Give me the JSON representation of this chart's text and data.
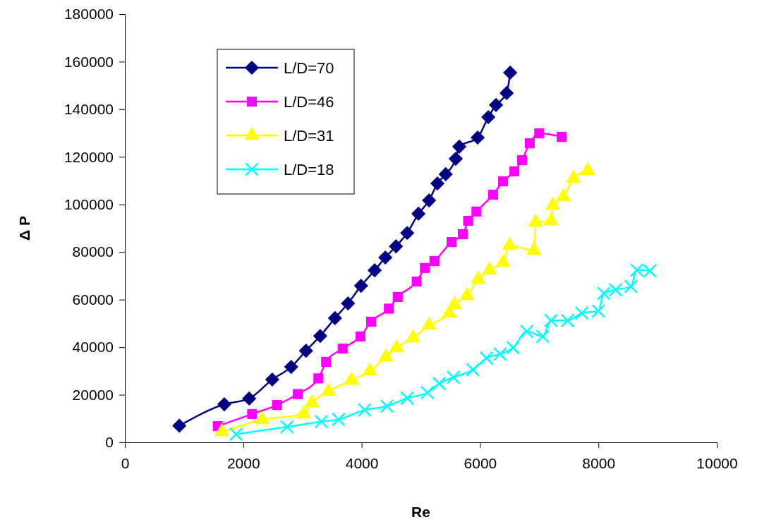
{
  "chart_data": {
    "type": "line",
    "xlabel": "Re",
    "ylabel": "Δ P",
    "xlim": [
      0,
      10000
    ],
    "xticks": [
      0,
      2000,
      4000,
      6000,
      8000,
      10000
    ],
    "ylim": [
      0,
      180000
    ],
    "yticks": [
      0,
      20000,
      40000,
      60000,
      80000,
      100000,
      120000,
      140000,
      160000,
      180000
    ],
    "grid": false,
    "legend": "top left",
    "line_style": "solid",
    "series": [
      {
        "name": "L/D=70",
        "color": "#000080",
        "marker": "diamond",
        "x": [
          920,
          1680,
          2100,
          2490,
          2810,
          3060,
          3300,
          3550,
          3770,
          3990,
          4220,
          4400,
          4580,
          4770,
          4960,
          5140,
          5280,
          5420,
          5590,
          5650,
          5960,
          6140,
          6270,
          6450,
          6510
        ],
        "values": [
          7000,
          16000,
          18400,
          26400,
          31700,
          38500,
          44700,
          52200,
          58400,
          65800,
          72300,
          77700,
          82400,
          88000,
          96100,
          101700,
          108800,
          112700,
          119200,
          124300,
          128100,
          136700,
          141800,
          146800,
          155400
        ]
      },
      {
        "name": "L/D=46",
        "color": "#ff00ff",
        "marker": "square",
        "x": [
          1570,
          2150,
          2570,
          2920,
          3270,
          3400,
          3680,
          3980,
          4160,
          4460,
          4610,
          4930,
          5070,
          5230,
          5520,
          5710,
          5800,
          5940,
          6220,
          6390,
          6580,
          6710,
          6840,
          7000,
          7380
        ],
        "values": [
          6800,
          11900,
          15700,
          20300,
          26900,
          33800,
          39400,
          44500,
          50700,
          56200,
          61100,
          67600,
          73300,
          76200,
          84200,
          87500,
          93100,
          97000,
          104100,
          109700,
          113900,
          118600,
          125700,
          129900,
          128400
        ]
      },
      {
        "name": "L/D=31",
        "color": "#ffff00",
        "marker": "triangle",
        "x": [
          1640,
          2320,
          3020,
          3160,
          3440,
          3830,
          4140,
          4410,
          4590,
          4870,
          5140,
          5480,
          5570,
          5780,
          5970,
          6160,
          6390,
          6500,
          6910,
          6940,
          7200,
          7230,
          7410,
          7580,
          7820
        ],
        "values": [
          4400,
          9500,
          11900,
          16600,
          21400,
          26100,
          30000,
          35900,
          39700,
          43900,
          49200,
          54300,
          57800,
          61700,
          68500,
          72400,
          75600,
          82700,
          80700,
          92500,
          93100,
          99600,
          103200,
          110900,
          114200
        ]
      },
      {
        "name": "L/D=18",
        "color": "#00ffff",
        "marker": "cross",
        "x": [
          1880,
          2740,
          3320,
          3610,
          4050,
          4430,
          4770,
          5110,
          5310,
          5550,
          5880,
          6110,
          6340,
          6560,
          6790,
          7060,
          7200,
          7480,
          7720,
          8000,
          8090,
          8290,
          8550,
          8650,
          8870
        ],
        "values": [
          3400,
          6500,
          8700,
          9600,
          13600,
          15200,
          18600,
          20900,
          24700,
          27300,
          30500,
          35400,
          37100,
          39800,
          46600,
          44500,
          51200,
          51200,
          54300,
          55200,
          62600,
          64100,
          65500,
          72400,
          72100
        ]
      }
    ]
  }
}
